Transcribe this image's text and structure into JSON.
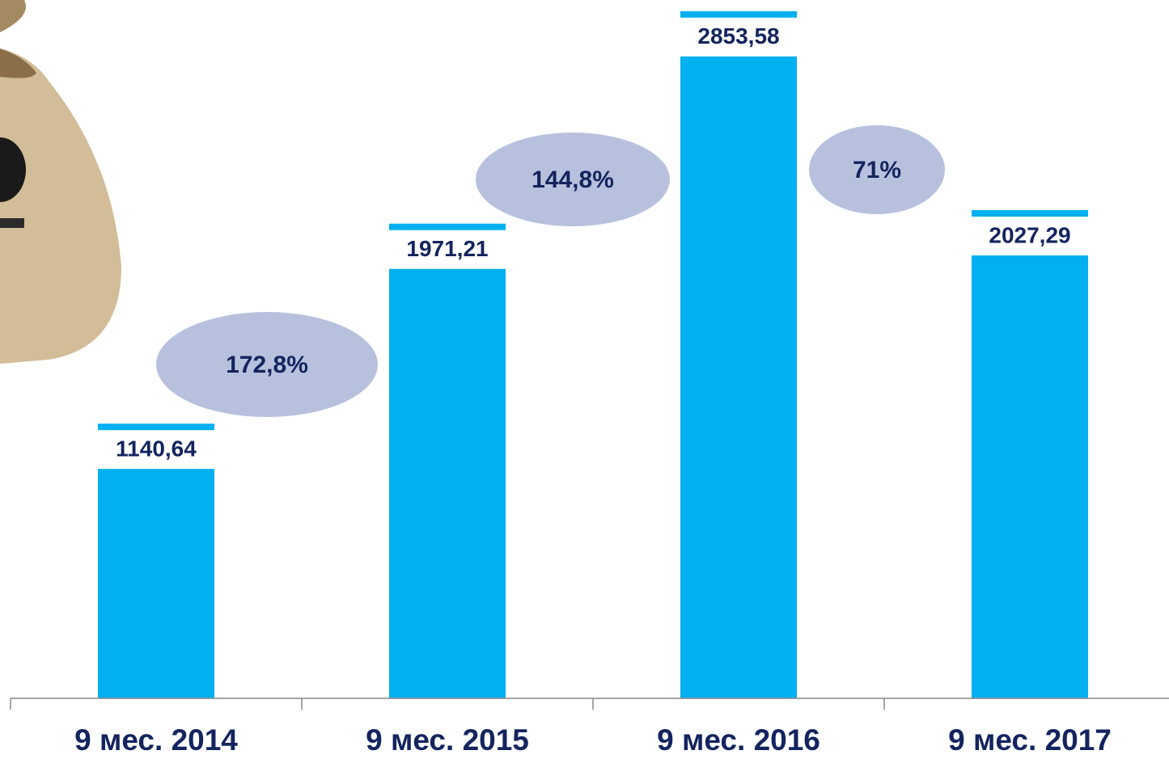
{
  "chart_data": {
    "type": "bar",
    "categories": [
      "9 мес. 2014",
      "9 мес. 2015",
      "9 мес. 2016",
      "9 мес. 2017"
    ],
    "values": [
      1140.64,
      1971.21,
      2853.58,
      2027.29
    ],
    "value_labels": [
      "1140,64",
      "1971,21",
      "2853,58",
      "2027,29"
    ],
    "color": "#00b0f0",
    "ylim": [
      0,
      2900
    ],
    "annotations": [
      "172,8%",
      "144,8%",
      "71%"
    ]
  }
}
